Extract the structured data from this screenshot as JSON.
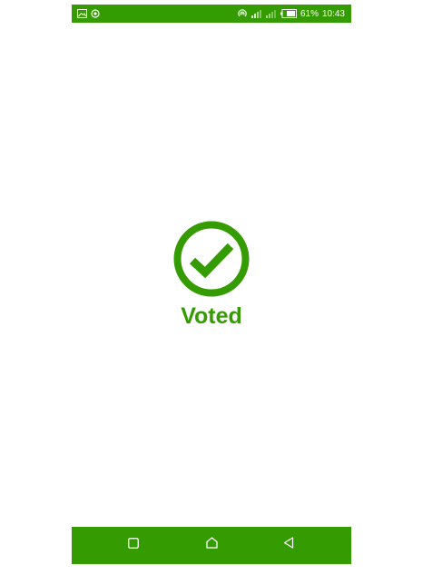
{
  "status_bar": {
    "battery": "61%",
    "time": "10:43",
    "icons": [
      "gallery-icon",
      "sync-icon",
      "hotspot-icon",
      "signal-icon",
      "signal-icon",
      "battery-icon"
    ]
  },
  "main": {
    "status_text": "Voted",
    "status_icon": "check-circle-icon"
  },
  "nav_bar": {
    "buttons": [
      "recents-icon",
      "home-icon",
      "back-icon"
    ]
  },
  "colors": {
    "accent": "#349c00",
    "background": "#ffffff"
  }
}
